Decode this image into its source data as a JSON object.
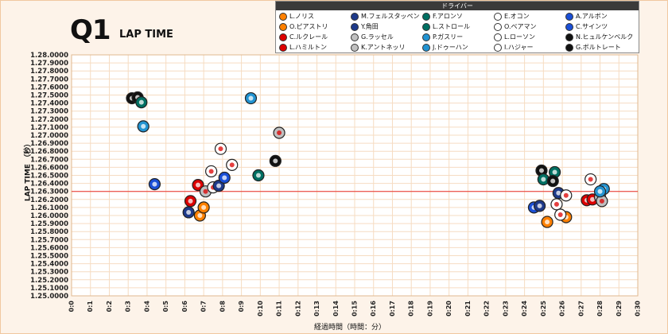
{
  "header": {
    "title": "Q1",
    "subtitle": "LAP TIME"
  },
  "legend": {
    "title": "ドライバー",
    "items": [
      {
        "label": "L.ノリス",
        "color": "#ff8000",
        "icon": "mclaren-icon"
      },
      {
        "label": "M.フェルスタッペン",
        "color": "#1e3a8a",
        "icon": "redbull-icon"
      },
      {
        "label": "F.アロンソ",
        "color": "#006f62",
        "icon": "astonmartin-icon"
      },
      {
        "label": "E.オコン",
        "color": "#ffffff",
        "icon": "haas-icon"
      },
      {
        "label": "A.アルボン",
        "color": "#1a4fd6",
        "icon": "williams-icon"
      },
      {
        "label": "O.ピアストリ",
        "color": "#ff8000",
        "icon": "mclaren-icon"
      },
      {
        "label": "Y.角田",
        "color": "#1e3a8a",
        "icon": "redbull-icon"
      },
      {
        "label": "L.ストロール",
        "color": "#006f62",
        "icon": "astonmartin-icon"
      },
      {
        "label": "O.ベアマン",
        "color": "#ffffff",
        "icon": "haas-icon"
      },
      {
        "label": "C.サインツ",
        "color": "#1a4fd6",
        "icon": "williams-icon"
      },
      {
        "label": "C.ルクレール",
        "color": "#dc0000",
        "icon": "ferrari-icon"
      },
      {
        "label": "G.ラッセル",
        "color": "#c0c0c0",
        "icon": "mercedes-icon"
      },
      {
        "label": "P.ガスリー",
        "color": "#2293d1",
        "icon": "alpine-icon"
      },
      {
        "label": "L.ローソン",
        "color": "#ffffff",
        "icon": "racingbulls-icon"
      },
      {
        "label": "N.ヒュルケンベルク",
        "color": "#111111",
        "icon": "sauber-icon"
      },
      {
        "label": "L.ハミルトン",
        "color": "#dc0000",
        "icon": "ferrari-icon"
      },
      {
        "label": "K.アントネッリ",
        "color": "#c0c0c0",
        "icon": "mercedes-icon"
      },
      {
        "label": "J.ドゥーハン",
        "color": "#2293d1",
        "icon": "alpine-icon"
      },
      {
        "label": "I.ハジャー",
        "color": "#ffffff",
        "icon": "racingbulls-icon"
      },
      {
        "label": "G.ボルトレート",
        "color": "#111111",
        "icon": "sauber-icon"
      }
    ]
  },
  "chart_data": {
    "type": "scatter",
    "xlabel": "経過時間（時間：分）",
    "ylabel": "LAP TIME （秒）",
    "xlim": [
      0,
      30
    ],
    "ylim": [
      1.25,
      1.28
    ],
    "x_unit": "minutes",
    "x_ticks": [
      "0:0",
      "0:1",
      "0:2",
      "0:3",
      "0:4",
      "0:5",
      "0:6",
      "0:7",
      "0:8",
      "0:9",
      "0:10",
      "0:11",
      "0:12",
      "0:13",
      "0:14",
      "0:15",
      "0:16",
      "0:17",
      "0:18",
      "0:19",
      "0:20",
      "0:21",
      "0:22",
      "0:23",
      "0:24",
      "0:25",
      "0:26",
      "0:27",
      "0:28",
      "0:29",
      "0:30"
    ],
    "y_ticks": [
      "1.25.0000",
      "1.25.1000",
      "1.25.2000",
      "1.25.3000",
      "1.25.4000",
      "1.25.5000",
      "1.25.6000",
      "1.25.7000",
      "1.25.8000",
      "1.25.9000",
      "1.26.0000",
      "1.26.1000",
      "1.26.2000",
      "1.26.3000",
      "1.26.4000",
      "1.26.5000",
      "1.26.6000",
      "1.26.7000",
      "1.26.8000",
      "1.26.9000",
      "1.27.0000",
      "1.27.1000",
      "1.27.2000",
      "1.27.3000",
      "1.27.4000",
      "1.27.5000",
      "1.27.6000",
      "1.27.7000",
      "1.27.8000",
      "1.27.9000",
      "1.28.0000"
    ],
    "cutoff_line": 1.263,
    "grid": true,
    "legend_position": "top-right",
    "points": [
      {
        "driver": "G.ボルトレート",
        "x": 3.2,
        "y": 1.2746,
        "color": "#111111",
        "icon": "sauber-icon"
      },
      {
        "driver": "N.ヒュルケンベルク",
        "x": 3.5,
        "y": 1.2747,
        "color": "#111111",
        "icon": "sauber-icon"
      },
      {
        "driver": "F.アロンソ",
        "x": 3.7,
        "y": 1.2741,
        "color": "#006f62",
        "icon": "astonmartin-icon"
      },
      {
        "driver": "J.ドゥーハン",
        "x": 3.8,
        "y": 1.2711,
        "color": "#2293d1",
        "icon": "alpine-icon"
      },
      {
        "driver": "C.サインツ",
        "x": 4.4,
        "y": 1.2639,
        "color": "#1a4fd6",
        "icon": "williams-icon"
      },
      {
        "driver": "M.フェルスタッペン",
        "x": 6.2,
        "y": 1.2604,
        "color": "#1e3a8a",
        "icon": "redbull-icon"
      },
      {
        "driver": "L.ハミルトン",
        "x": 6.3,
        "y": 1.2618,
        "color": "#dc0000",
        "icon": "ferrari-icon"
      },
      {
        "driver": "C.ルクレール",
        "x": 6.7,
        "y": 1.2638,
        "color": "#dc0000",
        "icon": "ferrari-icon"
      },
      {
        "driver": "L.ノリス",
        "x": 6.8,
        "y": 1.26,
        "color": "#ff8000",
        "icon": "mclaren-icon"
      },
      {
        "driver": "O.ピアストリ",
        "x": 7.0,
        "y": 1.261,
        "color": "#ff8000",
        "icon": "mclaren-icon"
      },
      {
        "driver": "G.ラッセル",
        "x": 7.1,
        "y": 1.263,
        "color": "#c0c0c0",
        "icon": "mercedes-icon"
      },
      {
        "driver": "O.ベアマン",
        "x": 7.5,
        "y": 1.2635,
        "color": "#ffffff",
        "icon": "haas-icon"
      },
      {
        "driver": "L.ローソン",
        "x": 7.4,
        "y": 1.2655,
        "color": "#ffffff",
        "icon": "racingbulls-icon"
      },
      {
        "driver": "Y.角田",
        "x": 7.8,
        "y": 1.2637,
        "color": "#1e3a8a",
        "icon": "redbull-icon"
      },
      {
        "driver": "E.オコン",
        "x": 7.9,
        "y": 1.2683,
        "color": "#ffffff",
        "icon": "haas-icon"
      },
      {
        "driver": "A.アルボン",
        "x": 8.1,
        "y": 1.2647,
        "color": "#1a4fd6",
        "icon": "williams-icon"
      },
      {
        "driver": "I.ハジャー",
        "x": 8.5,
        "y": 1.2663,
        "color": "#ffffff",
        "icon": "racingbulls-icon"
      },
      {
        "driver": "P.ガスリー",
        "x": 9.5,
        "y": 1.2746,
        "color": "#2293d1",
        "icon": "alpine-icon"
      },
      {
        "driver": "L.ストロール",
        "x": 9.9,
        "y": 1.265,
        "color": "#006f62",
        "icon": "astonmartin-icon"
      },
      {
        "driver": "K.アントネッリ",
        "x": 11.0,
        "y": 1.2703,
        "color": "#c0c0c0",
        "icon": "mercedes-icon"
      },
      {
        "driver": "G.ボルトレート",
        "x": 10.8,
        "y": 1.2668,
        "color": "#111111",
        "icon": "sauber-icon"
      },
      {
        "driver": "N.ヒュルケンベルク",
        "x": 24.9,
        "y": 1.2656,
        "color": "#111111",
        "icon": "sauber-icon"
      },
      {
        "driver": "F.アロンソ",
        "x": 25.6,
        "y": 1.2654,
        "color": "#006f62",
        "icon": "astonmartin-icon"
      },
      {
        "driver": "L.ストロール",
        "x": 25.0,
        "y": 1.2645,
        "color": "#006f62",
        "icon": "astonmartin-icon"
      },
      {
        "driver": "G.ボルトレート",
        "x": 25.5,
        "y": 1.2643,
        "color": "#111111",
        "icon": "sauber-icon"
      },
      {
        "driver": "C.サインツ",
        "x": 24.5,
        "y": 1.261,
        "color": "#1a4fd6",
        "icon": "williams-icon"
      },
      {
        "driver": "M.フェルスタッペン",
        "x": 24.8,
        "y": 1.2612,
        "color": "#1e3a8a",
        "icon": "redbull-icon"
      },
      {
        "driver": "L.ノリス",
        "x": 25.2,
        "y": 1.2592,
        "color": "#ff8000",
        "icon": "mclaren-icon"
      },
      {
        "driver": "O.ピアストリ",
        "x": 26.2,
        "y": 1.2598,
        "color": "#ff8000",
        "icon": "mclaren-icon"
      },
      {
        "driver": "E.オコン",
        "x": 25.7,
        "y": 1.2614,
        "color": "#ffffff",
        "icon": "haas-icon"
      },
      {
        "driver": "O.ベアマン",
        "x": 25.9,
        "y": 1.2601,
        "color": "#ffffff",
        "icon": "haas-icon"
      },
      {
        "driver": "Y.角田",
        "x": 25.8,
        "y": 1.2628,
        "color": "#1e3a8a",
        "icon": "redbull-icon"
      },
      {
        "driver": "L.ローソン",
        "x": 26.2,
        "y": 1.2625,
        "color": "#ffffff",
        "icon": "racingbulls-icon"
      },
      {
        "driver": "C.ルクレール",
        "x": 27.3,
        "y": 1.2619,
        "color": "#dc0000",
        "icon": "ferrari-icon"
      },
      {
        "driver": "L.ハミルトン",
        "x": 27.6,
        "y": 1.262,
        "color": "#dc0000",
        "icon": "ferrari-icon"
      },
      {
        "driver": "I.ハジャー",
        "x": 27.5,
        "y": 1.2645,
        "color": "#ffffff",
        "icon": "racingbulls-icon"
      },
      {
        "driver": "G.ラッセル",
        "x": 28.0,
        "y": 1.2623,
        "color": "#c0c0c0",
        "icon": "mercedes-icon"
      },
      {
        "driver": "K.アントネッリ",
        "x": 28.1,
        "y": 1.2618,
        "color": "#c0c0c0",
        "icon": "mercedes-icon"
      },
      {
        "driver": "P.ガスリー",
        "x": 28.2,
        "y": 1.2633,
        "color": "#2293d1",
        "icon": "alpine-icon"
      },
      {
        "driver": "J.ドゥーハン",
        "x": 28.0,
        "y": 1.263,
        "color": "#2293d1",
        "icon": "alpine-icon"
      }
    ]
  }
}
